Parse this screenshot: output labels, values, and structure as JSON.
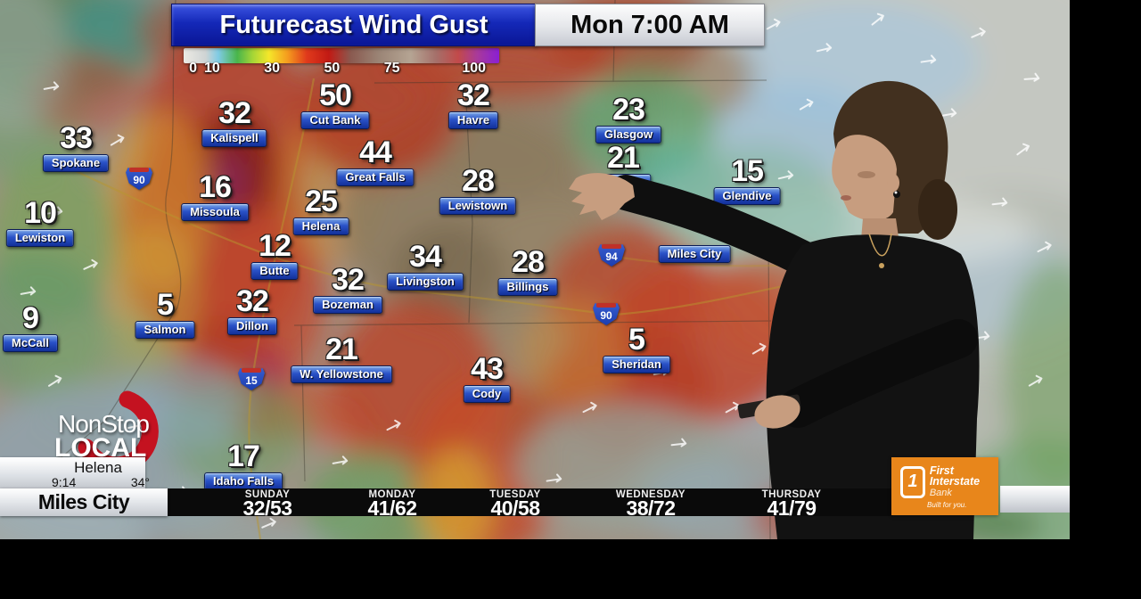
{
  "header": {
    "title": "Futurecast Wind Gust",
    "timestamp": "Mon 7:00 AM"
  },
  "legend": {
    "ticks": [
      "0",
      "10",
      "30",
      "50",
      "75",
      "100"
    ]
  },
  "stations": [
    {
      "name": "Spokane",
      "value": "33"
    },
    {
      "name": "Lewiston",
      "value": "10"
    },
    {
      "name": "McCall",
      "value": "9"
    },
    {
      "name": "Kalispell",
      "value": "32"
    },
    {
      "name": "Cut Bank",
      "value": "50"
    },
    {
      "name": "Havre",
      "value": "32"
    },
    {
      "name": "Glasgow",
      "value": "23"
    },
    {
      "name": "Great Falls",
      "value": "44"
    },
    {
      "name": "Jordan",
      "value": "21"
    },
    {
      "name": "Glendive",
      "value": "15"
    },
    {
      "name": "Missoula",
      "value": "16"
    },
    {
      "name": "Helena",
      "value": "25"
    },
    {
      "name": "Lewistown",
      "value": "28"
    },
    {
      "name": "Butte",
      "value": "12"
    },
    {
      "name": "Bozeman",
      "value": "32"
    },
    {
      "name": "Livingston",
      "value": "34"
    },
    {
      "name": "Billings",
      "value": "28"
    },
    {
      "name": "Salmon",
      "value": "5"
    },
    {
      "name": "Dillon",
      "value": "32"
    },
    {
      "name": "Sheridan",
      "value": "5"
    },
    {
      "name": "W. Yellowstone",
      "value": "21"
    },
    {
      "name": "Cody",
      "value": "43"
    },
    {
      "name": "Idaho Falls",
      "value": "17"
    },
    {
      "name": "Miles City",
      "value": ""
    }
  ],
  "highways": [
    "90",
    "15",
    "94",
    "90"
  ],
  "branding": {
    "logo_line1": "NonStop",
    "logo_line2": "LOCAL",
    "city": "Helena",
    "time": "9:14",
    "temp": "34°",
    "location": "Miles City"
  },
  "forecast": [
    {
      "day": "SUNDAY",
      "temps": "32/53"
    },
    {
      "day": "MONDAY",
      "temps": "41/62"
    },
    {
      "day": "TUESDAY",
      "temps": "40/58"
    },
    {
      "day": "WEDNESDAY",
      "temps": "38/72"
    },
    {
      "day": "THURSDAY",
      "temps": "41/79"
    }
  ],
  "sponsor": {
    "icon_number": "1",
    "line1": "First",
    "line2": "Interstate",
    "suffix": "Bank",
    "tagline": "Built for you.",
    "brand_color": "#e8861b"
  }
}
